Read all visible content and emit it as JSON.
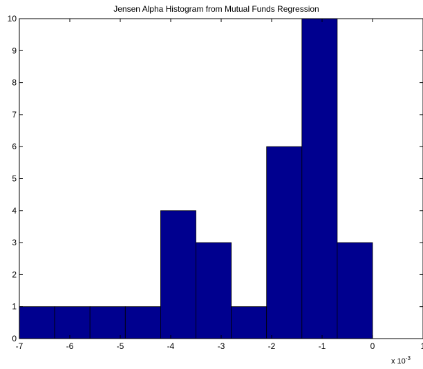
{
  "chart_data": {
    "type": "bar",
    "title": "Jensen Alpha Histogram from Mutual Funds Regression",
    "xlabel": "",
    "ylabel": "",
    "x_multiplier": "x 10",
    "x_multiplier_exponent": "-3",
    "xlim": [
      -7,
      1
    ],
    "ylim": [
      0,
      10
    ],
    "x_ticks": [
      -7,
      -6,
      -5,
      -4,
      -3,
      -2,
      -1,
      0,
      1
    ],
    "y_ticks": [
      0,
      1,
      2,
      3,
      4,
      5,
      6,
      7,
      8,
      9,
      10
    ],
    "bar_color": "#00008F",
    "bins": [
      {
        "start": -7.0,
        "end": -6.3,
        "count": 1
      },
      {
        "start": -6.3,
        "end": -5.6,
        "count": 1
      },
      {
        "start": -5.6,
        "end": -4.9,
        "count": 1
      },
      {
        "start": -4.9,
        "end": -4.2,
        "count": 1
      },
      {
        "start": -4.2,
        "end": -3.5,
        "count": 4
      },
      {
        "start": -3.5,
        "end": -2.8,
        "count": 3
      },
      {
        "start": -2.8,
        "end": -2.1,
        "count": 1
      },
      {
        "start": -2.1,
        "end": -1.4,
        "count": 6
      },
      {
        "start": -1.4,
        "end": -0.7,
        "count": 10
      },
      {
        "start": -0.7,
        "end": 0.0,
        "count": 3
      }
    ]
  }
}
